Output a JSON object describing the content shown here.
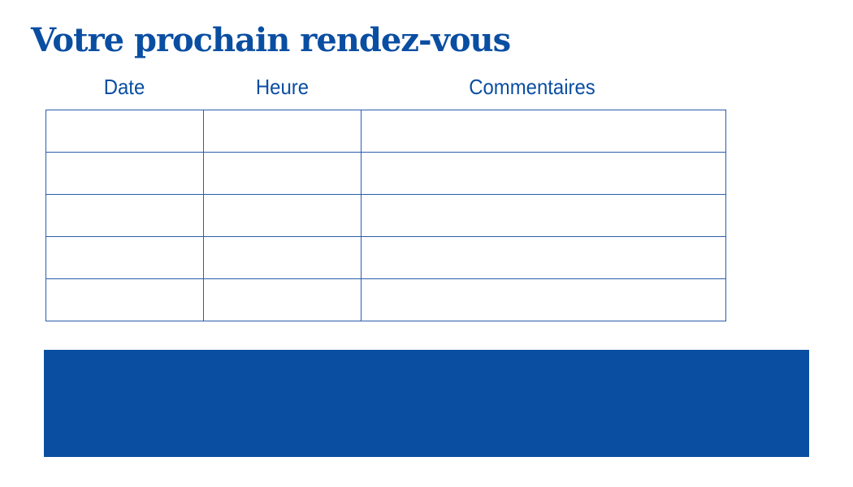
{
  "title": "Votre prochain rendez-vous",
  "table": {
    "headers": [
      "Date",
      "Heure",
      "Commentaires"
    ],
    "rows": [
      [
        "",
        "",
        ""
      ],
      [
        "",
        "",
        ""
      ],
      [
        "",
        "",
        ""
      ],
      [
        "",
        "",
        ""
      ],
      [
        "",
        "",
        ""
      ]
    ]
  },
  "colors": {
    "brand_blue": "#0a4ea2"
  }
}
